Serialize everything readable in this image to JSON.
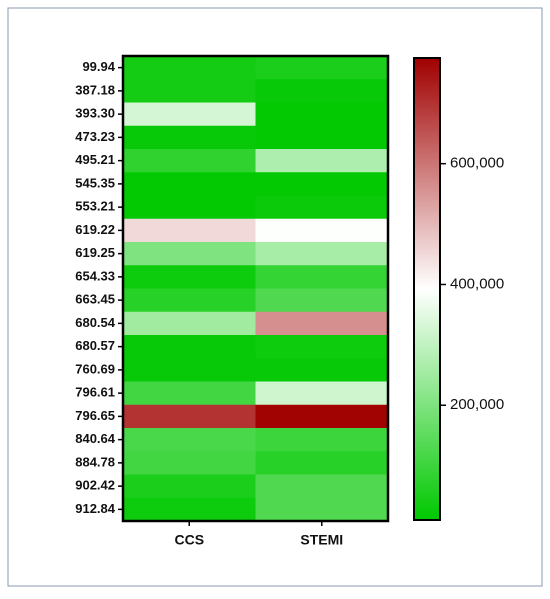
{
  "chart_data": {
    "type": "heatmap",
    "rows": [
      "99.94",
      "387.18",
      "393.30",
      "473.23",
      "495.21",
      "545.35",
      "553.21",
      "619.22",
      "619.25",
      "654.33",
      "663.45",
      "680.54",
      "680.57",
      "760.69",
      "796.61",
      "796.65",
      "840.64",
      "884.78",
      "902.42",
      "912.84"
    ],
    "columns": [
      "CCS",
      "STEMI"
    ],
    "values": [
      [
        40000,
        50000
      ],
      [
        40000,
        20000
      ],
      [
        330000,
        15000
      ],
      [
        20000,
        15000
      ],
      [
        80000,
        270000
      ],
      [
        15000,
        15000
      ],
      [
        15000,
        25000
      ],
      [
        450000,
        390000
      ],
      [
        200000,
        260000
      ],
      [
        30000,
        90000
      ],
      [
        70000,
        130000
      ],
      [
        250000,
        560000
      ],
      [
        20000,
        30000
      ],
      [
        20000,
        20000
      ],
      [
        110000,
        320000
      ],
      [
        700000,
        770000
      ],
      [
        120000,
        100000
      ],
      [
        110000,
        70000
      ],
      [
        50000,
        130000
      ],
      [
        30000,
        130000
      ]
    ],
    "colorscale": [
      "#00c800",
      "#ffffff",
      "#a00000"
    ],
    "clim": [
      10000,
      775000
    ],
    "cticks": [
      {
        "value": 200000,
        "label": "200,000"
      },
      {
        "value": 400000,
        "label": "400,000"
      },
      {
        "value": 600000,
        "label": "600,000"
      }
    ]
  }
}
